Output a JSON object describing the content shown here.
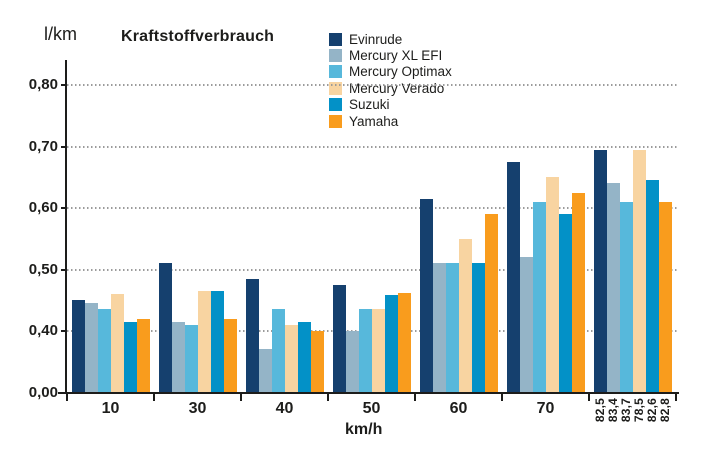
{
  "chart_data": {
    "type": "bar",
    "title": "Kraftstoffverbrauch",
    "ylabel": "l/km",
    "xlabel": "km/h",
    "y_tick_labels": [
      "0,80",
      "0,70",
      "0,60",
      "0,50",
      "0,40",
      "0,00"
    ],
    "y_axis_note": "broken axis: segment 0,00-0,40 is compressed to one tick step",
    "grid": "dotted horizontal gridlines at 0,40-0,80",
    "legend_position": "top, right of title",
    "categories": [
      "10",
      "30",
      "40",
      "50",
      "60",
      "70",
      ""
    ],
    "vmax_labels": [
      "82,5",
      "83,4",
      "83,7",
      "78,5",
      "82,6",
      "82,8"
    ],
    "series": [
      {
        "name": "Evinrude",
        "color": "#15406e",
        "values": [
          0.45,
          0.51,
          0.485,
          0.475,
          0.615,
          0.675,
          0.695
        ]
      },
      {
        "name": "Mercury XL EFI",
        "color": "#94b4c7",
        "values": [
          0.445,
          0.415,
          0.37,
          0.4,
          0.51,
          0.52,
          0.64
        ]
      },
      {
        "name": "Mercury Optimax",
        "color": "#57b8db",
        "values": [
          0.435,
          0.41,
          0.435,
          0.435,
          0.51,
          0.61,
          0.61
        ]
      },
      {
        "name": "Mercury Verado",
        "color": "#f8d4a1",
        "values": [
          0.46,
          0.465,
          0.41,
          0.435,
          0.55,
          0.65,
          0.695
        ]
      },
      {
        "name": "Suzuki",
        "color": "#0391c7",
        "values": [
          0.415,
          0.465,
          0.415,
          0.458,
          0.51,
          0.59,
          0.645
        ]
      },
      {
        "name": "Yamaha",
        "color": "#f99c1d",
        "values": [
          0.42,
          0.42,
          0.4,
          0.462,
          0.59,
          0.625,
          0.61
        ]
      }
    ]
  }
}
